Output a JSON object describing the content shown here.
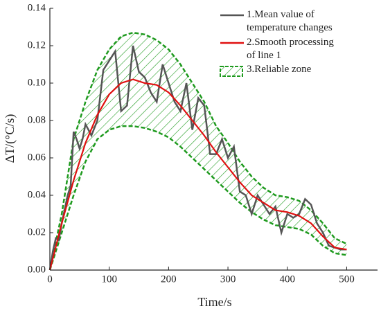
{
  "chart_data": {
    "type": "line",
    "xlabel": "Time/s",
    "ylabel": "ΔT/(°C/s)",
    "xlim": [
      0,
      552
    ],
    "xticks": [
      0,
      100,
      200,
      300,
      400,
      500
    ],
    "ylim": [
      0,
      0.14
    ],
    "yticks": [
      {
        "value": 0,
        "label": "0.00"
      },
      0.02,
      0.04,
      0.06,
      0.08,
      {
        "value": 0.1,
        "label": "0.10"
      },
      0.12,
      0.14
    ],
    "legend": "upper right",
    "series": [
      {
        "name": "1.Mean value of\ntemperature changes",
        "type": "line",
        "color": "#555555",
        "x": [
          0,
          5,
          10,
          15,
          20,
          30,
          35,
          40,
          45,
          50,
          55,
          60,
          70,
          80,
          90,
          100,
          110,
          120,
          130,
          140,
          150,
          160,
          170,
          180,
          190,
          200,
          210,
          220,
          230,
          240,
          250,
          260,
          270,
          280,
          290,
          300,
          310,
          320,
          330,
          340,
          350,
          360,
          370,
          380,
          390,
          400,
          410,
          420,
          430,
          440,
          450,
          460,
          470,
          480,
          490,
          500
        ],
        "values": [
          0,
          0.01,
          0.017,
          0.016,
          0.025,
          0.04,
          0.045,
          0.074,
          0.07,
          0.065,
          0.07,
          0.078,
          0.072,
          0.08,
          0.107,
          0.112,
          0.117,
          0.085,
          0.088,
          0.12,
          0.106,
          0.103,
          0.095,
          0.09,
          0.11,
          0.1,
          0.09,
          0.085,
          0.1,
          0.075,
          0.092,
          0.088,
          0.062,
          0.062,
          0.07,
          0.06,
          0.066,
          0.042,
          0.04,
          0.03,
          0.04,
          0.035,
          0.03,
          0.034,
          0.02,
          0.03,
          0.028,
          0.03,
          0.038,
          0.035,
          0.025,
          0.02,
          0.013,
          0.012,
          0.011,
          0.011
        ]
      },
      {
        "name": "2.Smooth processing\nof line 1",
        "type": "line",
        "color": "#e01010",
        "x": [
          0,
          20,
          40,
          60,
          80,
          100,
          120,
          140,
          160,
          180,
          200,
          220,
          240,
          260,
          280,
          300,
          320,
          340,
          360,
          380,
          400,
          420,
          440,
          460,
          480,
          500
        ],
        "values": [
          0,
          0.025,
          0.048,
          0.068,
          0.083,
          0.094,
          0.1,
          0.102,
          0.1,
          0.099,
          0.095,
          0.088,
          0.08,
          0.072,
          0.063,
          0.055,
          0.047,
          0.04,
          0.036,
          0.032,
          0.031,
          0.029,
          0.025,
          0.018,
          0.012,
          0.011
        ]
      },
      {
        "name": "3.Reliable zone",
        "type": "band",
        "color": "#1e9a1e",
        "x": [
          0,
          20,
          40,
          60,
          80,
          100,
          120,
          140,
          160,
          180,
          200,
          220,
          240,
          260,
          280,
          300,
          320,
          340,
          360,
          380,
          400,
          420,
          440,
          460,
          480,
          500
        ],
        "values": [
          0,
          0.03,
          0.07,
          0.09,
          0.107,
          0.118,
          0.125,
          0.127,
          0.126,
          0.123,
          0.118,
          0.11,
          0.1,
          0.09,
          0.077,
          0.068,
          0.058,
          0.05,
          0.044,
          0.04,
          0.039,
          0.037,
          0.032,
          0.025,
          0.017,
          0.014
        ],
        "lower": [
          0,
          0.02,
          0.04,
          0.058,
          0.07,
          0.075,
          0.077,
          0.077,
          0.076,
          0.074,
          0.071,
          0.066,
          0.06,
          0.054,
          0.048,
          0.042,
          0.036,
          0.031,
          0.027,
          0.024,
          0.023,
          0.022,
          0.019,
          0.013,
          0.009,
          0.008
        ]
      }
    ]
  }
}
